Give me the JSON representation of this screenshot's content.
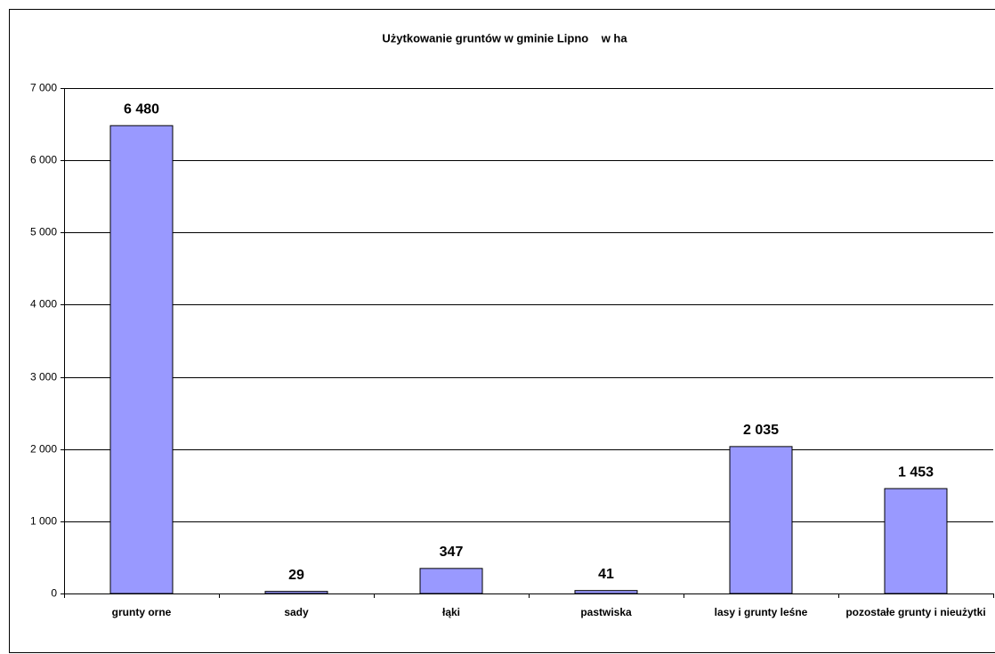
{
  "chart_data": {
    "type": "bar",
    "title": "Użytkowanie gruntów w gminie Lipno    w ha",
    "categories": [
      "grunty orne",
      "sady",
      "łąki",
      "pastwiska",
      "lasy i grunty leśne",
      "pozostałe grunty i nieużytki"
    ],
    "values": [
      6480,
      29,
      347,
      41,
      2035,
      1453
    ],
    "value_labels": [
      "6 480",
      "29",
      "347",
      "41",
      "2 035",
      "1 453"
    ],
    "color": "#9999ff",
    "ylim": [
      0,
      7000
    ],
    "yticks": [
      0,
      {
        "value": 1000,
        "label": "1 000"
      },
      {
        "value": 2000,
        "label": "2 000"
      },
      {
        "value": 3000,
        "label": "3 000"
      },
      {
        "value": 4000,
        "label": "4 000"
      },
      {
        "value": 5000,
        "label": "5 000"
      },
      {
        "value": 6000,
        "label": "6 000"
      },
      {
        "value": 7000,
        "label": "7 000"
      }
    ],
    "grid": true
  }
}
